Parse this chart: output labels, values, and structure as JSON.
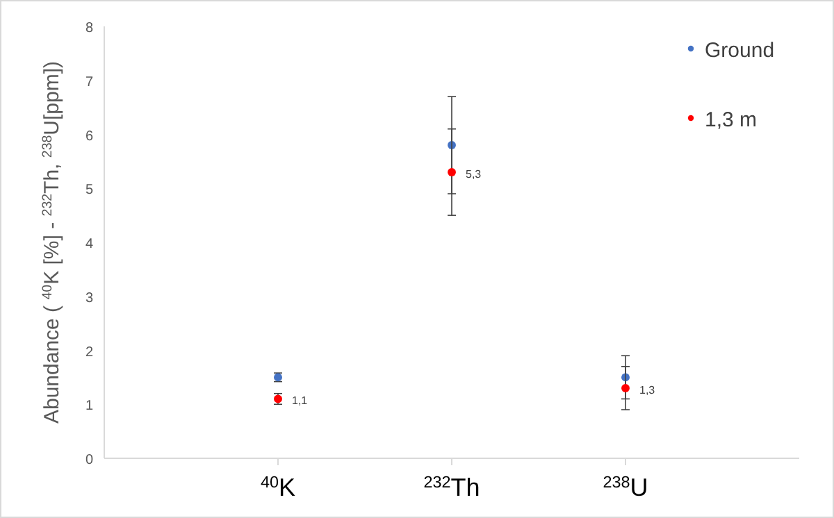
{
  "chart_data": {
    "type": "scatter",
    "ylabel": "Abundance ( $^{40}$K [%] - $^{232}$Th, $^{238}$U[ppm])",
    "categories": [
      "$^{40}$K",
      "$^{232}$Th",
      "$^{238}$U"
    ],
    "ylim": [
      0,
      8
    ],
    "yticks": [
      0,
      1,
      2,
      3,
      4,
      5,
      6,
      7,
      8
    ],
    "grid": false,
    "legend": "top right",
    "marker": "circle",
    "series": [
      {
        "name": "Ground",
        "color": "#4472c4",
        "values": [
          1.5,
          5.8,
          1.5
        ],
        "errors": [
          0.08,
          0.9,
          0.4
        ]
      },
      {
        "name": "1,3 m",
        "color": "#ff0000",
        "values": [
          1.1,
          5.3,
          1.3
        ],
        "errors": [
          0.1,
          0.8,
          0.4
        ],
        "value_labels": [
          "1,1",
          "5,3",
          "1,3"
        ]
      }
    ]
  }
}
